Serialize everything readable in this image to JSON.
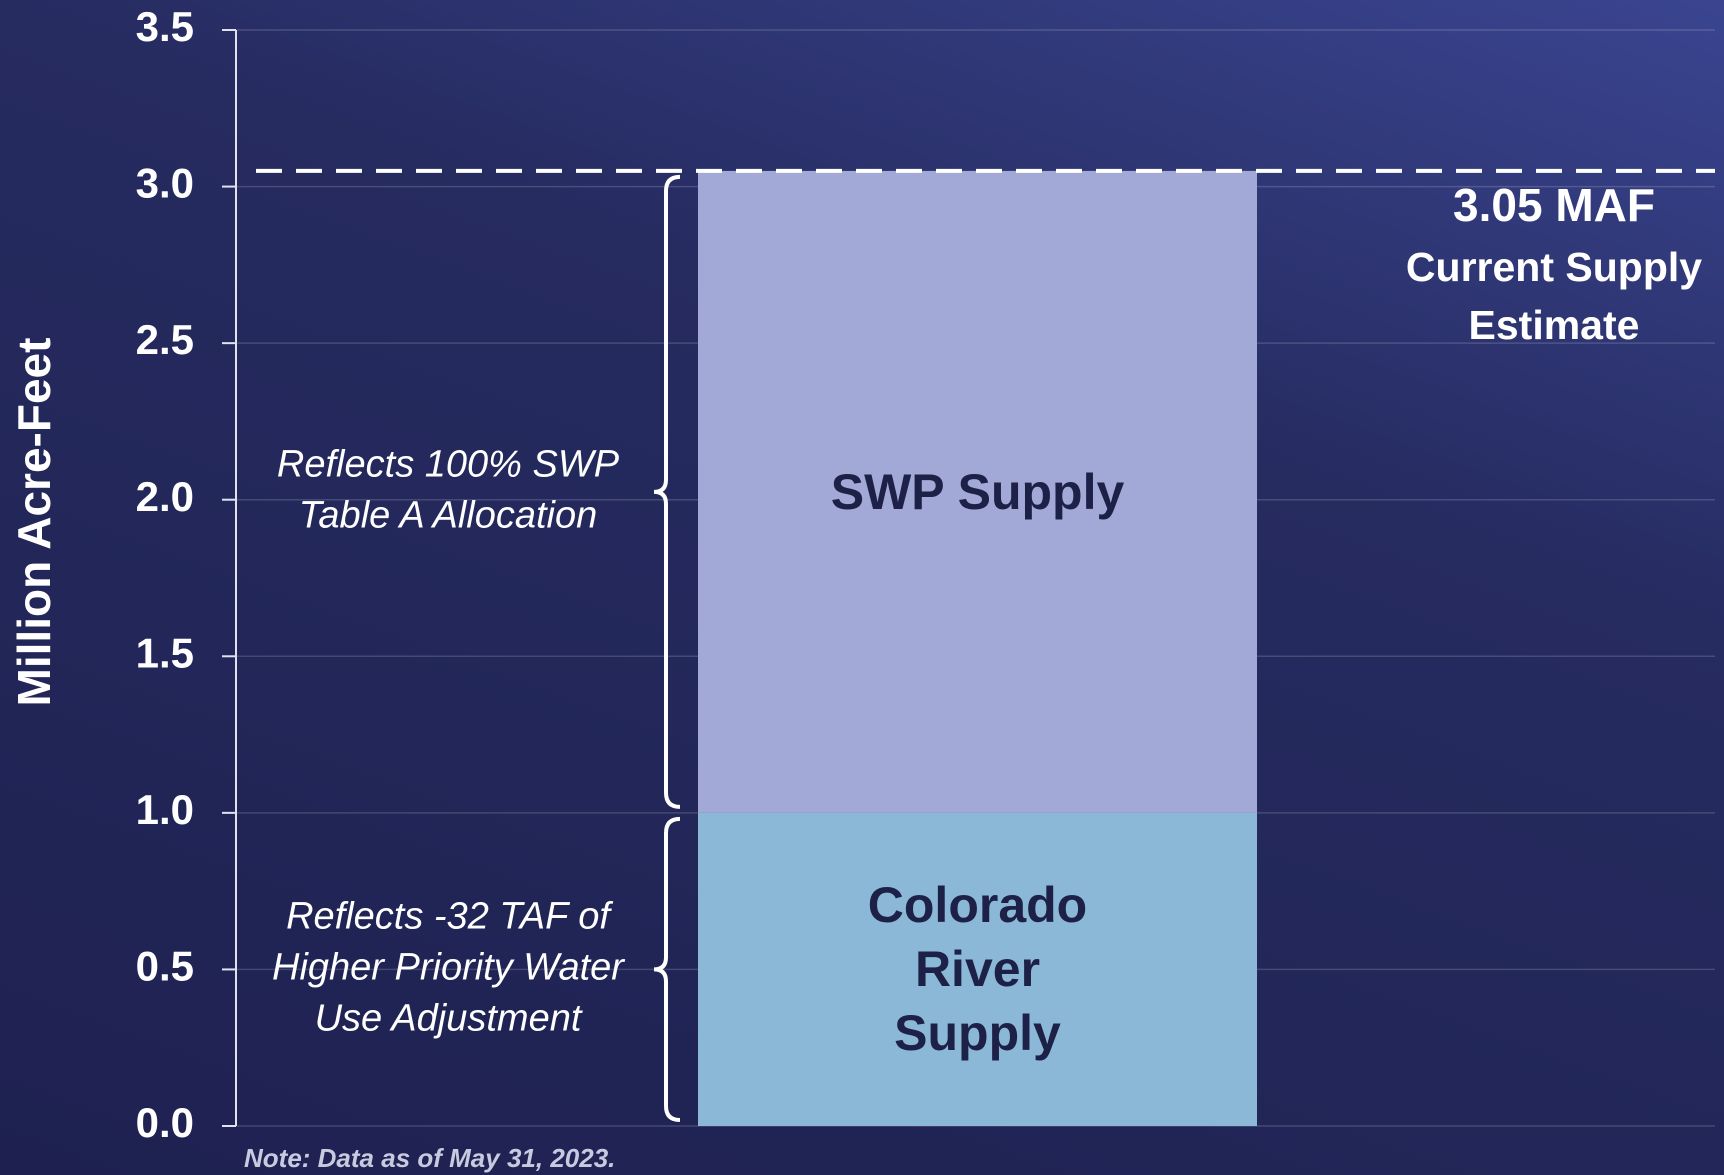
{
  "chart_data": {
    "type": "bar",
    "stacked": true,
    "y_label": "Million Acre-Feet",
    "ylim": [
      0,
      3.5
    ],
    "yticks": [
      {
        "value": 0,
        "label": "0.0"
      },
      0.5,
      {
        "value": 1,
        "label": "1.0"
      },
      1.5,
      {
        "value": 2,
        "label": "2.0"
      },
      2.5,
      {
        "value": 3,
        "label": "3.0"
      },
      3.5
    ],
    "grid": true,
    "series": [
      {
        "name": "Colorado River Supply",
        "color": "#8bb8d6",
        "values": [
          1.0
        ],
        "annotation": [
          "Reflects -32 TAF of",
          "Higher Priority Water",
          "Use Adjustment"
        ]
      },
      {
        "name": "SWP Supply",
        "color": "#a3a9d7",
        "values": [
          2.05
        ],
        "annotation": [
          "Reflects 100% SWP",
          "Table A Allocation"
        ]
      }
    ],
    "reference_line": {
      "value": 3.05,
      "label": "3.05 MAF",
      "text": [
        "Current Supply",
        "Estimate"
      ]
    },
    "note": "Note: Data as of May 31, 2023."
  }
}
